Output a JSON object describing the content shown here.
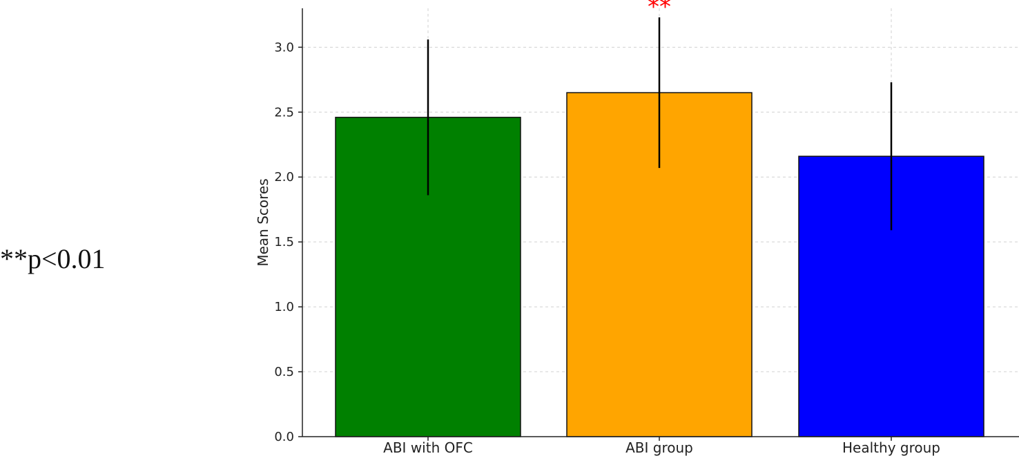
{
  "note": "**p<0.01",
  "chart_data": {
    "type": "bar",
    "categories": [
      "ABI with OFC",
      "ABI group",
      "Healthy group"
    ],
    "values": [
      2.46,
      2.65,
      2.16
    ],
    "errors": [
      0.6,
      0.58,
      0.57
    ],
    "colors": [
      "#008000",
      "#FFA500",
      "#0000FF"
    ],
    "significance": [
      "",
      "**",
      ""
    ],
    "significance_color": "#FF0000",
    "title": "",
    "xlabel": "",
    "ylabel": "Mean Scores",
    "ylim": [
      0,
      3.3
    ],
    "yticks": [
      "0.0",
      "0.5",
      "1.0",
      "1.5",
      "2.0",
      "2.5",
      "3.0"
    ],
    "grid": true
  }
}
